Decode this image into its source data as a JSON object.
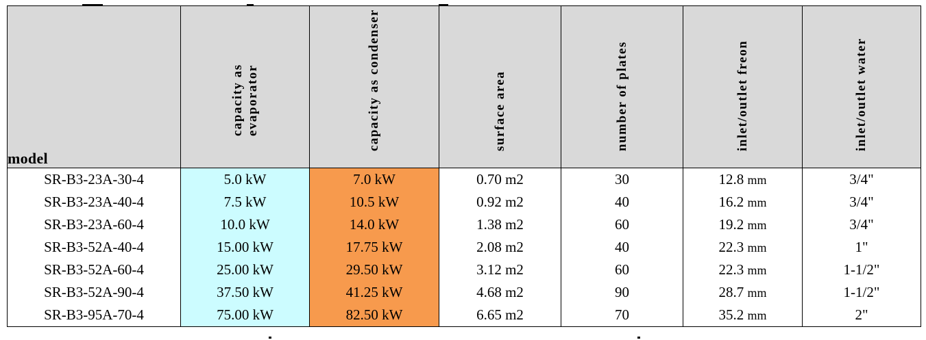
{
  "table": {
    "headers": {
      "model": "model",
      "evaporator": [
        "capacity as",
        "evaporator"
      ],
      "condenser": "capacity as condenser",
      "surface": "surface area",
      "plates": "number of plates",
      "freon": "inlet/outlet freon",
      "water": "inlet/outlet water"
    },
    "colors": {
      "header_bg": "#d9d9d9",
      "evaporator_bg": "#ccfcff",
      "condenser_bg": "#f79a4d"
    },
    "rows": [
      {
        "model": "SR-B3-23A-30-4",
        "evap": "5.0 kW",
        "cond": "7.0 kW",
        "area_val": "0.70",
        "area_unit": "m2",
        "plates": "30",
        "freon_val": "12.8",
        "freon_unit": "mm",
        "water": "3/4\""
      },
      {
        "model": "SR-B3-23A-40-4",
        "evap": "7.5 kW",
        "cond": "10.5 kW",
        "area_val": "0.92",
        "area_unit": "m2",
        "plates": "40",
        "freon_val": "16.2",
        "freon_unit": "mm",
        "water": "3/4\""
      },
      {
        "model": "SR-B3-23A-60-4",
        "evap": "10.0 kW",
        "cond": "14.0 kW",
        "area_val": "1.38",
        "area_unit": "m2",
        "plates": "60",
        "freon_val": "19.2",
        "freon_unit": "mm",
        "water": "3/4\""
      },
      {
        "model": "SR-B3-52A-40-4",
        "evap": "15.00 kW",
        "cond": "17.75 kW",
        "area_val": "2.08",
        "area_unit": "m2",
        "plates": "40",
        "freon_val": "22.3",
        "freon_unit": "mm",
        "water": "1\""
      },
      {
        "model": "SR-B3-52A-60-4",
        "evap": "25.00 kW",
        "cond": "29.50 kW",
        "area_val": "3.12",
        "area_unit": "m2",
        "plates": "60",
        "freon_val": "22.3",
        "freon_unit": "mm",
        "water": "1-1/2\""
      },
      {
        "model": "SR-B3-52A-90-4",
        "evap": "37.50 kW",
        "cond": "41.25 kW",
        "area_val": "4.68",
        "area_unit": "m2",
        "plates": "90",
        "freon_val": "28.7",
        "freon_unit": "mm",
        "water": "1-1/2\""
      },
      {
        "model": "SR-B3-95A-70-4",
        "evap": "75.00 kW",
        "cond": "82.50 kW",
        "area_val": "6.65",
        "area_unit": "m2",
        "plates": "70",
        "freon_val": "35.2",
        "freon_unit": "mm",
        "water": "2\""
      }
    ]
  }
}
